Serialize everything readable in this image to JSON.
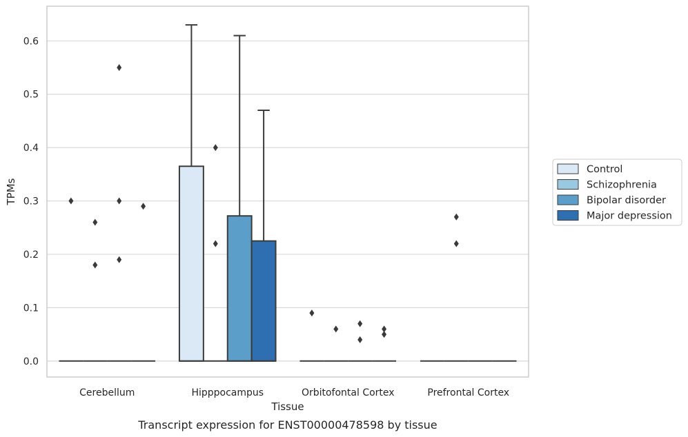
{
  "chart_data": {
    "type": "box",
    "title": "",
    "xlabel": "Tissue",
    "ylabel": "TPMs",
    "caption": "Transcript expression for ENST00000478598 by tissue",
    "ylim": [
      -0.03,
      0.665
    ],
    "yticks": [
      "0.0",
      "0.1",
      "0.2",
      "0.3",
      "0.4",
      "0.5",
      "0.6"
    ],
    "grid": "horizontal",
    "legend_placement": "right, outside plot",
    "categories": [
      "Cerebellum",
      "Hipppocampus",
      "Orbitofontal Cortex",
      "Prefrontal Cortex"
    ],
    "series": [
      {
        "name": "Control",
        "color": "#dbe9f6",
        "boxes": [
          {
            "category": "Cerebellum",
            "min": 0,
            "q1": 0,
            "median": 0,
            "q3": 0,
            "max": 0,
            "outliers": [
              0.3
            ]
          },
          {
            "category": "Hipppocampus",
            "min": 0,
            "q1": 0,
            "median": 0,
            "q3": 0.365,
            "max": 0.63,
            "outliers": []
          },
          {
            "category": "Orbitofontal Cortex",
            "min": 0,
            "q1": 0,
            "median": 0,
            "q3": 0,
            "max": 0,
            "outliers": [
              0.09
            ]
          },
          {
            "category": "Prefrontal Cortex",
            "min": 0,
            "q1": 0,
            "median": 0,
            "q3": 0,
            "max": 0,
            "outliers": []
          }
        ]
      },
      {
        "name": "Schizophrenia",
        "color": "#9ac8e0",
        "boxes": [
          {
            "category": "Cerebellum",
            "min": 0,
            "q1": 0,
            "median": 0,
            "q3": 0,
            "max": 0,
            "outliers": [
              0.26,
              0.18
            ]
          },
          {
            "category": "Hipppocampus",
            "min": 0,
            "q1": 0,
            "median": 0,
            "q3": 0,
            "max": 0,
            "outliers": [
              0.4,
              0.22
            ]
          },
          {
            "category": "Orbitofontal Cortex",
            "min": 0,
            "q1": 0,
            "median": 0,
            "q3": 0,
            "max": 0,
            "outliers": [
              0.06
            ]
          },
          {
            "category": "Prefrontal Cortex",
            "min": 0,
            "q1": 0,
            "median": 0,
            "q3": 0,
            "max": 0,
            "outliers": [
              0.27,
              0.22
            ]
          }
        ]
      },
      {
        "name": "Bipolar disorder",
        "color": "#5a9ec9",
        "boxes": [
          {
            "category": "Cerebellum",
            "min": 0,
            "q1": 0,
            "median": 0,
            "q3": 0,
            "max": 0,
            "outliers": [
              0.55,
              0.3,
              0.19
            ]
          },
          {
            "category": "Hipppocampus",
            "min": 0,
            "q1": 0,
            "median": 0,
            "q3": 0.272,
            "max": 0.61,
            "outliers": []
          },
          {
            "category": "Orbitofontal Cortex",
            "min": 0,
            "q1": 0,
            "median": 0,
            "q3": 0,
            "max": 0,
            "outliers": [
              0.07,
              0.04
            ]
          },
          {
            "category": "Prefrontal Cortex",
            "min": 0,
            "q1": 0,
            "median": 0,
            "q3": 0,
            "max": 0,
            "outliers": []
          }
        ]
      },
      {
        "name": "Major depression",
        "color": "#2d6fb0",
        "boxes": [
          {
            "category": "Cerebellum",
            "min": 0,
            "q1": 0,
            "median": 0,
            "q3": 0,
            "max": 0,
            "outliers": [
              0.29
            ]
          },
          {
            "category": "Hipppocampus",
            "min": 0,
            "q1": 0,
            "median": 0,
            "q3": 0.225,
            "max": 0.47,
            "outliers": []
          },
          {
            "category": "Orbitofontal Cortex",
            "min": 0,
            "q1": 0,
            "median": 0,
            "q3": 0,
            "max": 0,
            "outliers": [
              0.06,
              0.05
            ]
          },
          {
            "category": "Prefrontal Cortex",
            "min": 0,
            "q1": 0,
            "median": 0,
            "q3": 0,
            "max": 0,
            "outliers": []
          }
        ]
      }
    ]
  }
}
